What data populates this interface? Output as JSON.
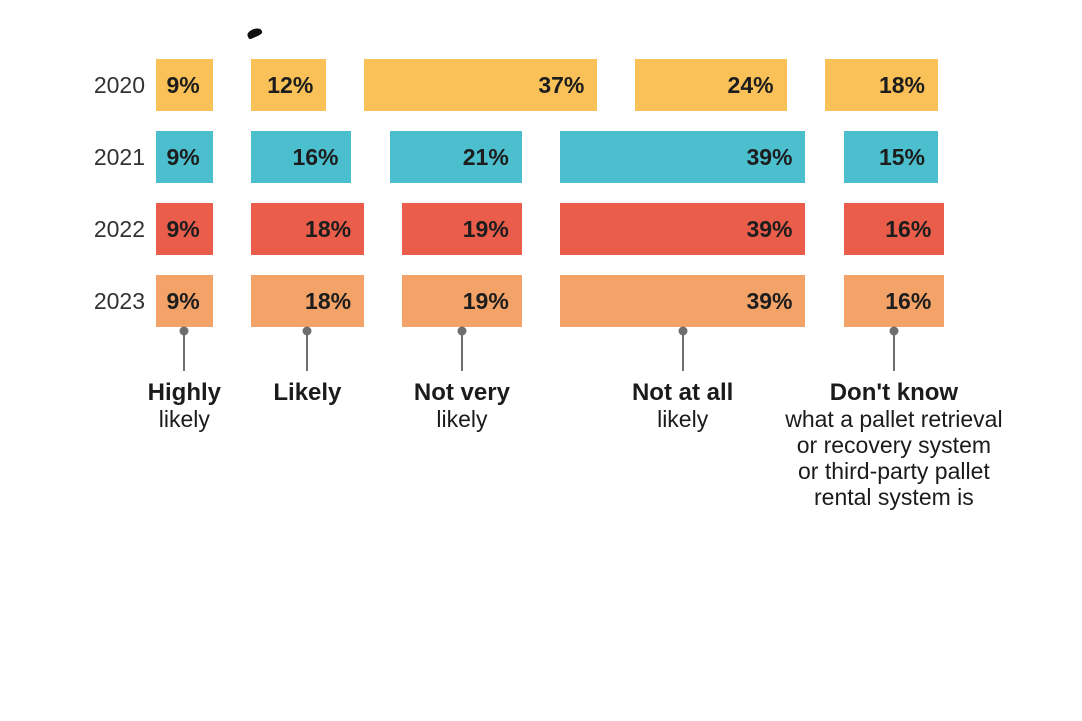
{
  "background": "#FFFFFF",
  "decorations": {
    "cropped_title_fragment": "partial-glyph-from-cropped-title"
  },
  "chart_data": {
    "type": "bar",
    "subtype": "horizontal-stacked-with-gaps",
    "title": "",
    "xlabel": "",
    "ylabel": "",
    "unit": "%",
    "xlim": [
      0,
      100
    ],
    "grid": false,
    "legend_position": "none",
    "value_label_suffix": "%",
    "value_label_placement": "inside-right",
    "categories": [
      {
        "id": "highly-likely",
        "title": "Highly",
        "subtitle_lines": [
          "likely"
        ]
      },
      {
        "id": "likely",
        "title": "Likely",
        "subtitle_lines": []
      },
      {
        "id": "not-very-likely",
        "title": "Not very",
        "subtitle_lines": [
          "likely"
        ]
      },
      {
        "id": "not-at-all-likely",
        "title": "Not at all",
        "subtitle_lines": [
          "likely"
        ]
      },
      {
        "id": "dont-know",
        "title": "Don't know",
        "subtitle_lines": [
          "what a pallet retrieval",
          "or recovery system",
          "or third-party pallet",
          "rental system is"
        ]
      }
    ],
    "series": [
      {
        "name": "2020",
        "color": "#F9C158",
        "values": [
          9,
          12,
          37,
          24,
          18
        ]
      },
      {
        "name": "2021",
        "color": "#4BBFCE",
        "values": [
          9,
          16,
          21,
          39,
          15
        ]
      },
      {
        "name": "2022",
        "color": "#EA5D4B",
        "values": [
          9,
          18,
          19,
          39,
          16
        ]
      },
      {
        "name": "2023",
        "color": "#F4A368",
        "values": [
          9,
          18,
          19,
          39,
          16
        ]
      }
    ],
    "colors": {
      "year_2020": "#F9C158",
      "year_2021": "#4BBFCE",
      "year_2022": "#EA5D4B",
      "year_2023": "#F4A368",
      "connector": "#6E6E6E",
      "value_text": "#1D1D1D",
      "year_text": "#333333",
      "category_text": "#1B1B1B"
    }
  }
}
